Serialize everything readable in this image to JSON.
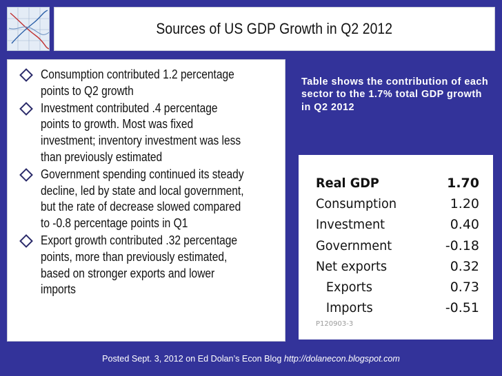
{
  "title": "Sources of US GDP Growth in Q2 2012",
  "bullets": [
    "Consumption contributed 1.2  percentage points to Q2 growth",
    "Investment contributed .4 percentage points to growth. Most was fixed investment; inventory investment was less than previously estimated",
    "Government spending continued its steady decline, led by state and local government, but the rate of decrease slowed compared to -0.8 percentage points in Q1",
    "Export growth contributed .32 percentage points, more than previously estimated, based on stronger exports and lower imports"
  ],
  "caption": "Table shows the contribution of each sector to the 1.7% total GDP growth in Q2 2012",
  "table": {
    "rows": [
      {
        "label": "Real GDP",
        "value": "1.70"
      },
      {
        "label": "Consumption",
        "value": "1.20"
      },
      {
        "label": "Investment",
        "value": "0.40"
      },
      {
        "label": "Government",
        "value": "-0.18"
      },
      {
        "label": "Net exports",
        "value": "0.32"
      },
      {
        "label": "Exports",
        "value": "0.73"
      },
      {
        "label": "Imports",
        "value": "-0.51"
      }
    ],
    "note": "P120903-3"
  },
  "footer": {
    "text": "Posted Sept. 3, 2012 on Ed Dolan’s Econ Blog",
    "url": "http://dolanecon.blogspot.com"
  },
  "colors": {
    "background": "#33339a",
    "panel": "#ffffff"
  }
}
